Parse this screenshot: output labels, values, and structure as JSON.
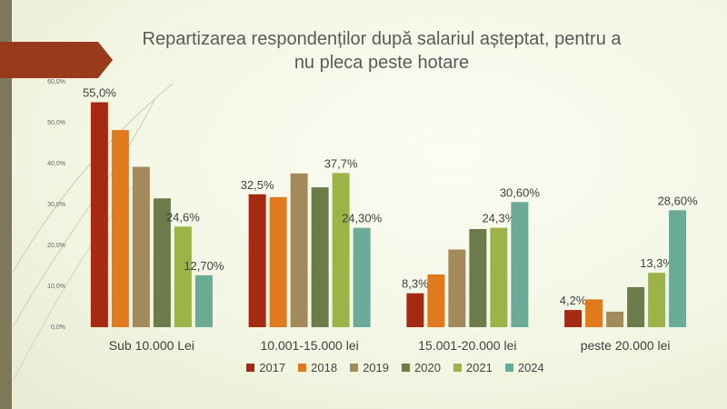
{
  "colors": {
    "sidebar": "#7d775c",
    "title_tab": "#9a3a1a",
    "text": "#404040"
  },
  "chart_data": {
    "type": "bar",
    "title": "Repartizarea respondenților după salariul așteptat, pentru a nu pleca peste hotare",
    "title_lines": [
      "Repartizarea respondenților după salariul așteptat, pentru a",
      "nu pleca peste hotare"
    ],
    "categories": [
      "Sub 10.000 Lei",
      "10.001-15.000 lei",
      "15.001-20.000 lei",
      "peste 20.000 lei"
    ],
    "ylim": [
      0,
      60
    ],
    "yticks": [
      "0,0%",
      "10,0%",
      "20,0%",
      "30,0%",
      "40,0%",
      "50,0%",
      "60,0%"
    ],
    "grid": false,
    "legend_position": "bottom",
    "series": [
      {
        "name": "2017",
        "color": "#a52a12",
        "values": [
          55.0,
          32.5,
          8.3,
          4.2
        ],
        "labels": [
          "55,0%",
          "32,5%",
          "8,3%",
          "4,2%"
        ]
      },
      {
        "name": "2018",
        "color": "#e17a1c",
        "values": [
          48.2,
          31.8,
          12.9,
          6.8
        ],
        "labels": [
          "",
          "",
          "",
          ""
        ]
      },
      {
        "name": "2019",
        "color": "#a38a5a",
        "values": [
          39.2,
          37.6,
          19.0,
          3.8
        ],
        "labels": [
          "",
          "",
          "",
          ""
        ]
      },
      {
        "name": "2020",
        "color": "#6b7c4a",
        "values": [
          31.5,
          34.2,
          24.0,
          9.8
        ],
        "labels": [
          "",
          "",
          "",
          ""
        ]
      },
      {
        "name": "2021",
        "color": "#9cb447",
        "values": [
          24.6,
          37.7,
          24.3,
          13.3
        ],
        "labels": [
          "24,6%",
          "37,7%",
          "24,3%",
          "13,3%"
        ]
      },
      {
        "name": "2024",
        "color": "#6aab97",
        "values": [
          12.7,
          24.3,
          30.6,
          28.6
        ],
        "labels": [
          "12,70%",
          "24,30%",
          "30,60%",
          "28,60%"
        ]
      }
    ]
  }
}
